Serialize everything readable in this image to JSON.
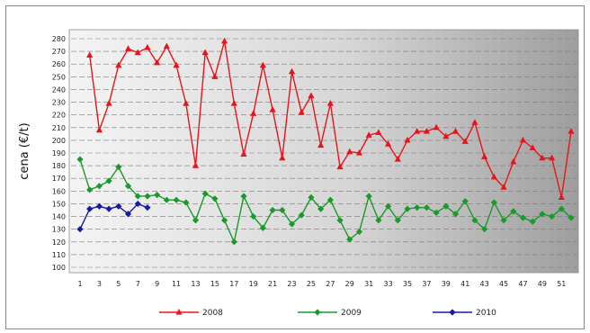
{
  "chart_data": {
    "type": "line",
    "title": "",
    "xlabel": "",
    "ylabel": "cena (€/t)",
    "ylim": [
      100,
      280
    ],
    "ytick_step": 10,
    "xlim": [
      1,
      52
    ],
    "xtick_labels": [
      "1",
      "3",
      "5",
      "7",
      "9",
      "11",
      "13",
      "15",
      "17",
      "19",
      "21",
      "23",
      "25",
      "27",
      "29",
      "31",
      "33",
      "35",
      "37",
      "39",
      "41",
      "43",
      "45",
      "47",
      "49",
      "51"
    ],
    "grid": "horizontal dashed",
    "legend": "bottom",
    "series": [
      {
        "name": "2008",
        "color": "#e8141c",
        "marker": "triangle",
        "x": [
          1,
          2,
          3,
          4,
          5,
          6,
          7,
          8,
          9,
          10,
          11,
          12,
          13,
          14,
          15,
          16,
          17,
          18,
          19,
          20,
          21,
          22,
          23,
          24,
          25,
          26,
          27,
          28,
          29,
          30,
          31,
          32,
          33,
          34,
          35,
          36,
          37,
          38,
          39,
          40,
          41,
          42,
          43,
          44,
          45,
          46,
          47,
          48,
          49,
          50,
          51,
          52
        ],
        "values": [
          null,
          267,
          208,
          229,
          259,
          272,
          269,
          273,
          261,
          274,
          259,
          229,
          180,
          269,
          250,
          278,
          229,
          189,
          221,
          259,
          224,
          186,
          254,
          222,
          235,
          196,
          229,
          179,
          191,
          190,
          204,
          206,
          197,
          185,
          200,
          207,
          207,
          210,
          203,
          207,
          199,
          214,
          187,
          171,
          163,
          183,
          200,
          194,
          186,
          186,
          155,
          207
        ]
      },
      {
        "name": "2009",
        "color": "#1a9a2a",
        "marker": "diamond",
        "x": [
          1,
          2,
          3,
          4,
          5,
          6,
          7,
          8,
          9,
          10,
          11,
          12,
          13,
          14,
          15,
          16,
          17,
          18,
          19,
          20,
          21,
          22,
          23,
          24,
          25,
          26,
          27,
          28,
          29,
          30,
          31,
          32,
          33,
          34,
          35,
          36,
          37,
          38,
          39,
          40,
          41,
          42,
          43,
          44,
          45,
          46,
          47,
          48,
          49,
          50,
          51,
          52
        ],
        "values": [
          185,
          161,
          164,
          168,
          179,
          164,
          156,
          156,
          157,
          153,
          153,
          151,
          137,
          158,
          154,
          137,
          120,
          156,
          140,
          131,
          145,
          145,
          134,
          141,
          155,
          146,
          153,
          137,
          122,
          128,
          156,
          137,
          148,
          137,
          146,
          147,
          147,
          143,
          148,
          142,
          152,
          137,
          130,
          151,
          137,
          144,
          139,
          136,
          142,
          140,
          146,
          139
        ]
      },
      {
        "name": "2010",
        "color": "#1a1a9e",
        "marker": "diamond",
        "x": [
          1,
          2,
          3,
          4,
          5,
          6,
          7,
          8
        ],
        "values": [
          130,
          146,
          148,
          146,
          148,
          142,
          150,
          147
        ]
      }
    ]
  }
}
